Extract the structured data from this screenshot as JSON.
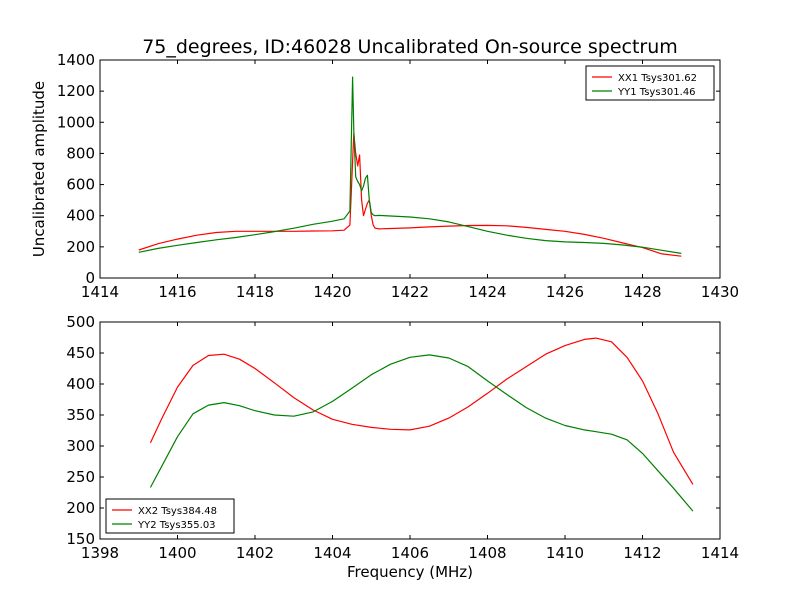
{
  "chart_data": [
    {
      "type": "line",
      "title": "75_degrees, ID:46028 Uncalibrated On-source spectrum",
      "ylabel": "Uncalibrated amplitude",
      "xlabel": "",
      "xlim": [
        1414,
        1430
      ],
      "ylim": [
        0,
        1400
      ],
      "xticks": [
        "1414",
        "1416",
        "1418",
        "1420",
        "1422",
        "1424",
        "1426",
        "1428",
        "1430"
      ],
      "yticks": [
        "0",
        "200",
        "400",
        "600",
        "800",
        "1000",
        "1200",
        "1400"
      ],
      "grid": false,
      "legend_position": "top-right",
      "series": [
        {
          "name": "XX1 Tsys301.62",
          "color": "#ff0000",
          "x": [
            1415.0,
            1415.5,
            1416.0,
            1416.5,
            1417.0,
            1417.5,
            1418.0,
            1418.5,
            1419.0,
            1419.5,
            1420.0,
            1420.3,
            1420.45,
            1420.55,
            1420.6,
            1420.65,
            1420.7,
            1420.75,
            1420.8,
            1420.85,
            1420.9,
            1420.95,
            1421.0,
            1421.05,
            1421.1,
            1421.2,
            1421.5,
            1422.0,
            1422.5,
            1423.0,
            1423.5,
            1424.0,
            1424.5,
            1425.0,
            1425.5,
            1426.0,
            1426.5,
            1427.0,
            1427.5,
            1428.0,
            1428.5,
            1429.0
          ],
          "y": [
            180,
            220,
            250,
            275,
            292,
            300,
            300,
            300,
            300,
            302,
            303,
            307,
            340,
            930,
            800,
            720,
            790,
            500,
            400,
            440,
            480,
            500,
            400,
            340,
            320,
            315,
            318,
            322,
            328,
            333,
            337,
            338,
            335,
            325,
            312,
            300,
            280,
            255,
            225,
            195,
            155,
            140
          ]
        },
        {
          "name": "YY1 Tsys301.46",
          "color": "#008000",
          "x": [
            1415.0,
            1415.5,
            1416.0,
            1416.5,
            1417.0,
            1417.5,
            1418.0,
            1418.5,
            1419.0,
            1419.5,
            1420.0,
            1420.3,
            1420.45,
            1420.52,
            1420.55,
            1420.6,
            1420.65,
            1420.7,
            1420.75,
            1420.8,
            1420.85,
            1420.9,
            1420.95,
            1421.0,
            1421.05,
            1421.1,
            1421.2,
            1421.5,
            1422.0,
            1422.5,
            1423.0,
            1423.5,
            1424.0,
            1424.5,
            1425.0,
            1425.5,
            1426.0,
            1426.5,
            1427.0,
            1427.5,
            1428.0,
            1428.5,
            1429.0
          ],
          "y": [
            165,
            190,
            210,
            228,
            245,
            260,
            278,
            298,
            320,
            345,
            365,
            380,
            430,
            1290,
            950,
            650,
            620,
            600,
            560,
            590,
            640,
            660,
            500,
            420,
            405,
            400,
            402,
            398,
            392,
            380,
            360,
            330,
            300,
            275,
            255,
            240,
            232,
            228,
            222,
            212,
            198,
            178,
            158
          ]
        }
      ]
    },
    {
      "type": "line",
      "title": "",
      "ylabel": "",
      "xlabel": "Frequency (MHz)",
      "xlim": [
        1398,
        1414
      ],
      "ylim": [
        150,
        500
      ],
      "xticks": [
        "1398",
        "1400",
        "1402",
        "1404",
        "1406",
        "1408",
        "1410",
        "1412",
        "1414"
      ],
      "yticks": [
        "150",
        "200",
        "250",
        "300",
        "350",
        "400",
        "450",
        "500"
      ],
      "grid": false,
      "legend_position": "bottom-left",
      "series": [
        {
          "name": "XX2 Tsys384.48",
          "color": "#ff0000",
          "x": [
            1399.3,
            1399.6,
            1400.0,
            1400.4,
            1400.8,
            1401.2,
            1401.6,
            1402.0,
            1402.5,
            1403.0,
            1403.5,
            1404.0,
            1404.5,
            1405.0,
            1405.5,
            1406.0,
            1406.5,
            1407.0,
            1407.5,
            1408.0,
            1408.5,
            1409.0,
            1409.5,
            1410.0,
            1410.5,
            1410.8,
            1411.2,
            1411.6,
            1412.0,
            1412.4,
            1412.8,
            1413.3
          ],
          "y": [
            305,
            345,
            395,
            430,
            446,
            448,
            440,
            425,
            402,
            378,
            358,
            343,
            335,
            330,
            327,
            326,
            332,
            345,
            363,
            385,
            408,
            428,
            448,
            462,
            472,
            474,
            468,
            443,
            405,
            352,
            290,
            238
          ]
        },
        {
          "name": "YY2 Tsys355.03",
          "color": "#008000",
          "x": [
            1399.3,
            1399.6,
            1400.0,
            1400.4,
            1400.8,
            1401.2,
            1401.6,
            1402.0,
            1402.5,
            1403.0,
            1403.5,
            1404.0,
            1404.5,
            1405.0,
            1405.5,
            1406.0,
            1406.5,
            1407.0,
            1407.5,
            1408.0,
            1408.5,
            1409.0,
            1409.5,
            1410.0,
            1410.5,
            1410.8,
            1411.2,
            1411.6,
            1412.0,
            1412.4,
            1412.8,
            1413.3
          ],
          "y": [
            233,
            268,
            315,
            352,
            366,
            370,
            365,
            357,
            350,
            348,
            355,
            372,
            393,
            415,
            432,
            443,
            447,
            442,
            428,
            405,
            383,
            362,
            345,
            333,
            326,
            323,
            319,
            310,
            288,
            260,
            232,
            195
          ]
        }
      ]
    }
  ]
}
